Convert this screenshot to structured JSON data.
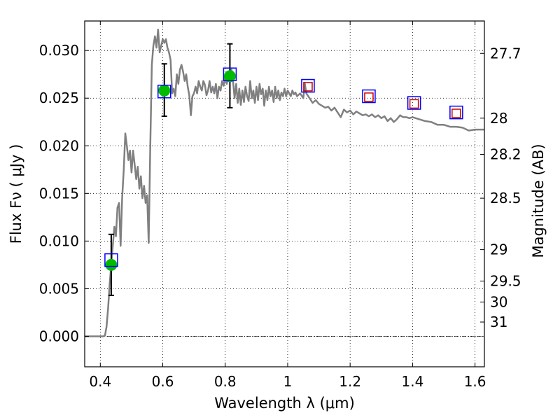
{
  "chart_data": {
    "type": "line",
    "xlabel": "Wavelength  λ (μm)",
    "ylabel": "Flux  Fν  ( μJy )",
    "ylabel_right": "Magnitude (AB)",
    "xlim": [
      0.35,
      1.63
    ],
    "ylim": [
      -0.0032,
      0.0331
    ],
    "grid": true,
    "x_ticks": [
      0.4,
      0.6,
      0.8,
      1.0,
      1.2,
      1.4,
      1.6
    ],
    "x_tick_labels": [
      "0.4",
      "0.6",
      "0.8",
      "1",
      "1.2",
      "1.4",
      "1.6"
    ],
    "y_ticks": [
      0.0,
      0.005,
      0.01,
      0.015,
      0.02,
      0.025,
      0.03
    ],
    "y_tick_labels": [
      "0.000",
      "0.005",
      "0.010",
      "0.015",
      "0.020",
      "0.025",
      "0.030"
    ],
    "right_ticks": [
      {
        "label": "27.7",
        "flux": 0.0297
      },
      {
        "label": "28",
        "flux": 0.0229
      },
      {
        "label": "28.2",
        "flux": 0.0191
      },
      {
        "label": "28.5",
        "flux": 0.0145
      },
      {
        "label": "29",
        "flux": 0.0091
      },
      {
        "label": "29.5",
        "flux": 0.0058
      },
      {
        "label": "30",
        "flux": 0.0036
      },
      {
        "label": "31",
        "flux": 0.0015
      }
    ],
    "model_color": "#808080",
    "model_spectrum": [
      [
        0.35,
        0.0
      ],
      [
        0.41,
        0.0
      ],
      [
        0.415,
        0.0001
      ],
      [
        0.42,
        0.001
      ],
      [
        0.425,
        0.003
      ],
      [
        0.43,
        0.0055
      ],
      [
        0.435,
        0.0075
      ],
      [
        0.44,
        0.0095
      ],
      [
        0.445,
        0.0115
      ],
      [
        0.45,
        0.0105
      ],
      [
        0.455,
        0.0135
      ],
      [
        0.46,
        0.014
      ],
      [
        0.465,
        0.0095
      ],
      [
        0.47,
        0.0145
      ],
      [
        0.475,
        0.0175
      ],
      [
        0.48,
        0.0213
      ],
      [
        0.485,
        0.02
      ],
      [
        0.49,
        0.0185
      ],
      [
        0.495,
        0.0195
      ],
      [
        0.5,
        0.0172
      ],
      [
        0.505,
        0.0195
      ],
      [
        0.51,
        0.018
      ],
      [
        0.515,
        0.0165
      ],
      [
        0.52,
        0.0178
      ],
      [
        0.525,
        0.0155
      ],
      [
        0.53,
        0.0168
      ],
      [
        0.535,
        0.0145
      ],
      [
        0.54,
        0.0158
      ],
      [
        0.545,
        0.014
      ],
      [
        0.55,
        0.0148
      ],
      [
        0.555,
        0.0098
      ],
      [
        0.56,
        0.02
      ],
      [
        0.565,
        0.0285
      ],
      [
        0.57,
        0.0305
      ],
      [
        0.575,
        0.0315
      ],
      [
        0.58,
        0.0303
      ],
      [
        0.585,
        0.0322
      ],
      [
        0.59,
        0.0298
      ],
      [
        0.595,
        0.0305
      ],
      [
        0.6,
        0.0312
      ],
      [
        0.605,
        0.0308
      ],
      [
        0.61,
        0.0312
      ],
      [
        0.615,
        0.0303
      ],
      [
        0.62,
        0.0298
      ],
      [
        0.625,
        0.029
      ],
      [
        0.63,
        0.0255
      ],
      [
        0.635,
        0.026
      ],
      [
        0.64,
        0.0252
      ],
      [
        0.645,
        0.0275
      ],
      [
        0.65,
        0.0265
      ],
      [
        0.655,
        0.028
      ],
      [
        0.66,
        0.0285
      ],
      [
        0.665,
        0.0278
      ],
      [
        0.67,
        0.0268
      ],
      [
        0.675,
        0.0275
      ],
      [
        0.68,
        0.0262
      ],
      [
        0.685,
        0.0253
      ],
      [
        0.69,
        0.0232
      ],
      [
        0.695,
        0.0252
      ],
      [
        0.7,
        0.0255
      ],
      [
        0.705,
        0.0262
      ],
      [
        0.71,
        0.0255
      ],
      [
        0.715,
        0.0268
      ],
      [
        0.72,
        0.0262
      ],
      [
        0.725,
        0.0258
      ],
      [
        0.73,
        0.0268
      ],
      [
        0.735,
        0.0264
      ],
      [
        0.74,
        0.0253
      ],
      [
        0.745,
        0.0258
      ],
      [
        0.75,
        0.0268
      ],
      [
        0.755,
        0.0256
      ],
      [
        0.76,
        0.0262
      ],
      [
        0.765,
        0.0255
      ],
      [
        0.77,
        0.0265
      ],
      [
        0.775,
        0.025
      ],
      [
        0.78,
        0.0262
      ],
      [
        0.785,
        0.0258
      ],
      [
        0.79,
        0.0268
      ],
      [
        0.795,
        0.0263
      ],
      [
        0.8,
        0.0272
      ],
      [
        0.805,
        0.0265
      ],
      [
        0.81,
        0.0275
      ],
      [
        0.815,
        0.0268
      ],
      [
        0.82,
        0.028
      ],
      [
        0.825,
        0.0268
      ],
      [
        0.83,
        0.025
      ],
      [
        0.835,
        0.0265
      ],
      [
        0.84,
        0.0245
      ],
      [
        0.845,
        0.026
      ],
      [
        0.85,
        0.0243
      ],
      [
        0.855,
        0.0258
      ],
      [
        0.86,
        0.0246
      ],
      [
        0.865,
        0.0262
      ],
      [
        0.87,
        0.0252
      ],
      [
        0.875,
        0.0247
      ],
      [
        0.88,
        0.0268
      ],
      [
        0.885,
        0.025
      ],
      [
        0.89,
        0.0258
      ],
      [
        0.895,
        0.0245
      ],
      [
        0.9,
        0.0262
      ],
      [
        0.905,
        0.0248
      ],
      [
        0.91,
        0.0265
      ],
      [
        0.915,
        0.0254
      ],
      [
        0.92,
        0.026
      ],
      [
        0.925,
        0.0242
      ],
      [
        0.93,
        0.0258
      ],
      [
        0.935,
        0.0248
      ],
      [
        0.94,
        0.0262
      ],
      [
        0.945,
        0.0252
      ],
      [
        0.95,
        0.0258
      ],
      [
        0.955,
        0.0246
      ],
      [
        0.96,
        0.0262
      ],
      [
        0.965,
        0.025
      ],
      [
        0.97,
        0.0258
      ],
      [
        0.975,
        0.0248
      ],
      [
        0.98,
        0.0256
      ],
      [
        0.985,
        0.0252
      ],
      [
        0.99,
        0.026
      ],
      [
        0.995,
        0.0252
      ],
      [
        1.0,
        0.0258
      ],
      [
        1.005,
        0.0255
      ],
      [
        1.01,
        0.0252
      ],
      [
        1.015,
        0.0258
      ],
      [
        1.02,
        0.0254
      ],
      [
        1.025,
        0.0256
      ],
      [
        1.03,
        0.0252
      ],
      [
        1.04,
        0.0255
      ],
      [
        1.05,
        0.025
      ],
      [
        1.055,
        0.0265
      ],
      [
        1.06,
        0.0255
      ],
      [
        1.07,
        0.025
      ],
      [
        1.08,
        0.0245
      ],
      [
        1.09,
        0.0248
      ],
      [
        1.1,
        0.0244
      ],
      [
        1.11,
        0.0242
      ],
      [
        1.12,
        0.024
      ],
      [
        1.13,
        0.0241
      ],
      [
        1.14,
        0.0237
      ],
      [
        1.15,
        0.024
      ],
      [
        1.16,
        0.0235
      ],
      [
        1.17,
        0.023
      ],
      [
        1.18,
        0.0238
      ],
      [
        1.19,
        0.0235
      ],
      [
        1.2,
        0.0237
      ],
      [
        1.21,
        0.0233
      ],
      [
        1.22,
        0.0236
      ],
      [
        1.23,
        0.0234
      ],
      [
        1.24,
        0.0232
      ],
      [
        1.25,
        0.0233
      ],
      [
        1.26,
        0.0231
      ],
      [
        1.27,
        0.0233
      ],
      [
        1.28,
        0.023
      ],
      [
        1.29,
        0.0232
      ],
      [
        1.3,
        0.0229
      ],
      [
        1.31,
        0.0231
      ],
      [
        1.32,
        0.0226
      ],
      [
        1.33,
        0.0229
      ],
      [
        1.34,
        0.0225
      ],
      [
        1.35,
        0.0228
      ],
      [
        1.36,
        0.0232
      ],
      [
        1.37,
        0.023
      ],
      [
        1.38,
        0.023
      ],
      [
        1.39,
        0.0229
      ],
      [
        1.4,
        0.023
      ],
      [
        1.41,
        0.0229
      ],
      [
        1.42,
        0.0228
      ],
      [
        1.44,
        0.0226
      ],
      [
        1.46,
        0.0225
      ],
      [
        1.48,
        0.0222
      ],
      [
        1.5,
        0.0222
      ],
      [
        1.52,
        0.022
      ],
      [
        1.54,
        0.022
      ],
      [
        1.56,
        0.0219
      ],
      [
        1.58,
        0.0216
      ],
      [
        1.6,
        0.0217
      ],
      [
        1.63,
        0.0217
      ]
    ],
    "series": [
      {
        "marker": "circle",
        "color": "#00bb00",
        "points": [
          {
            "x": 0.435,
            "y": 0.0075,
            "yerr_low": 0.0043,
            "yerr_high": 0.0107
          },
          {
            "x": 0.605,
            "y": 0.0258,
            "yerr_low": 0.0231,
            "yerr_high": 0.0286
          },
          {
            "x": 0.815,
            "y": 0.0273,
            "yerr_low": 0.024,
            "yerr_high": 0.0307
          }
        ]
      },
      {
        "marker": "square",
        "color": "#0000ff",
        "points": [
          {
            "x": 0.435,
            "y": 0.008
          },
          {
            "x": 0.605,
            "y": 0.0257
          },
          {
            "x": 0.815,
            "y": 0.0275
          },
          {
            "x": 1.065,
            "y": 0.0263
          },
          {
            "x": 1.26,
            "y": 0.0252
          },
          {
            "x": 1.405,
            "y": 0.0245
          },
          {
            "x": 1.54,
            "y": 0.0235
          }
        ]
      },
      {
        "marker": "square",
        "color": "#cc0000",
        "points": [
          {
            "x": 1.065,
            "y": 0.0262
          },
          {
            "x": 1.26,
            "y": 0.0251
          },
          {
            "x": 1.405,
            "y": 0.0244
          },
          {
            "x": 1.54,
            "y": 0.0234
          }
        ]
      }
    ]
  }
}
